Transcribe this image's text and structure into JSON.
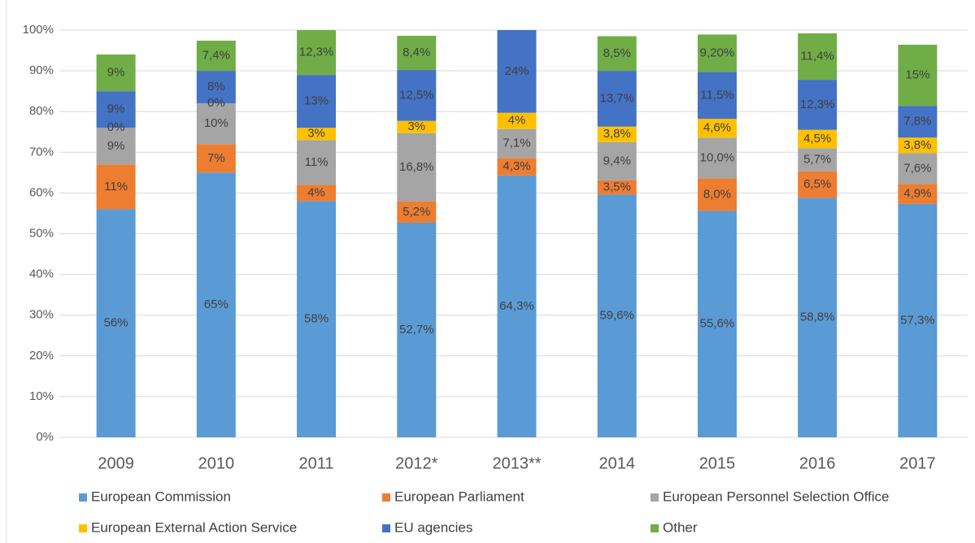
{
  "chart_data": {
    "type": "stacked_bar",
    "categories": [
      "2009",
      "2010",
      "2011",
      "2012*",
      "2013**",
      "2014",
      "2015",
      "2016",
      "2017"
    ],
    "series": [
      {
        "name": "European Commission",
        "color": "#5b9bd5",
        "values": [
          56,
          65,
          58,
          52.7,
          64.3,
          59.6,
          55.6,
          58.8,
          57.3
        ],
        "value_labels": [
          "56%",
          "65%",
          "58%",
          "52,7%",
          "64,3%",
          "59,6%",
          "55,6%",
          "58,8%",
          "57,3%"
        ]
      },
      {
        "name": "European Parliament",
        "color": "#ed7d31",
        "values": [
          11,
          7,
          4,
          5.2,
          4.3,
          3.5,
          8.0,
          6.5,
          4.9
        ],
        "value_labels": [
          "11%",
          "7%",
          "4%",
          "5,2%",
          "4,3%",
          "3,5%",
          "8,0%",
          "6,5%",
          "4,9%"
        ]
      },
      {
        "name": "European Personnel Selection Office",
        "color": "#a5a5a5",
        "values": [
          9,
          10,
          11,
          16.8,
          7.1,
          9.4,
          10.0,
          5.7,
          7.6
        ],
        "value_labels": [
          "9%",
          "10%",
          "11%",
          "16,8%",
          "7,1%",
          "9,4%",
          "10,0%",
          "5,7%",
          "7,6%"
        ]
      },
      {
        "name": "European External Action Service",
        "color": "#ffc000",
        "values": [
          0,
          0,
          3,
          3,
          4,
          3.8,
          4.6,
          4.5,
          3.8
        ],
        "value_labels": [
          "0%",
          "0%",
          "3%",
          "3%",
          "4%",
          "3,8%",
          "4,6%",
          "4,5%",
          "3,8%"
        ]
      },
      {
        "name": "EU agencies",
        "color": "#4472c4",
        "values": [
          9,
          8,
          13,
          12.5,
          24,
          13.7,
          11.5,
          12.3,
          7.8
        ],
        "value_labels": [
          "9%",
          "8%",
          "13%",
          "12,5%",
          "24%",
          "13,7%",
          "11,5%",
          "12,3%",
          "7,8%"
        ]
      },
      {
        "name": "Other",
        "color": "#70ad47",
        "values": [
          9,
          7.4,
          12.3,
          8.4,
          null,
          8.5,
          9.2,
          11.4,
          15
        ],
        "value_labels": [
          "9%",
          "7,4%",
          "12,3%",
          "8,4%",
          null,
          "8,5%",
          "9,20%",
          "11,4%",
          "15%"
        ]
      }
    ],
    "ylim": [
      0,
      100
    ],
    "yticks": [
      {
        "value": 0,
        "label": "0%"
      },
      {
        "value": 10,
        "label": "10%"
      },
      {
        "value": 20,
        "label": "20%"
      },
      {
        "value": 30,
        "label": "30%"
      },
      {
        "value": 40,
        "label": "40%"
      },
      {
        "value": 50,
        "label": "50%"
      },
      {
        "value": 60,
        "label": "60%"
      },
      {
        "value": 70,
        "label": "70%"
      },
      {
        "value": 80,
        "label": "80%"
      },
      {
        "value": 90,
        "label": "90%"
      },
      {
        "value": 100,
        "label": "100%"
      }
    ],
    "grid": true,
    "legend": "bottom"
  }
}
